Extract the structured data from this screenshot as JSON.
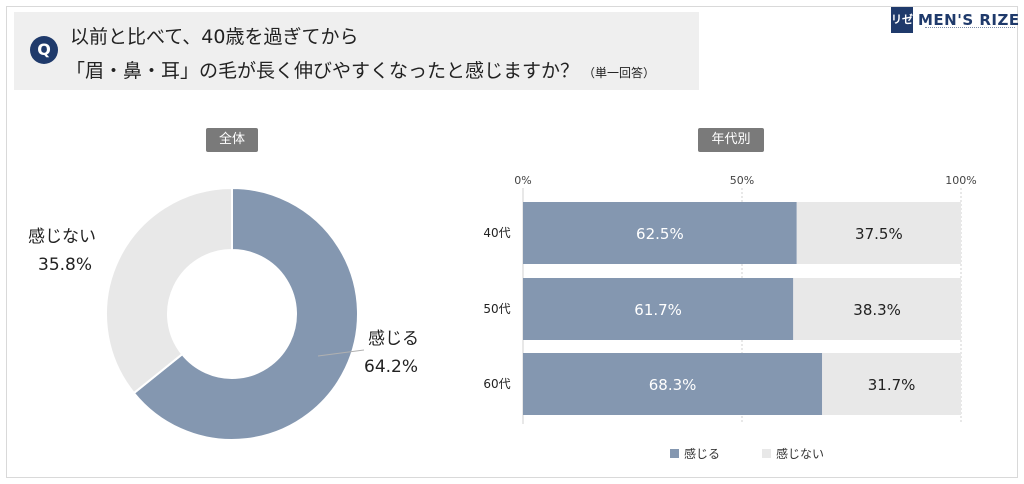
{
  "question": {
    "badge": "Q",
    "line1": "以前と比べて、40歳を過ぎてから",
    "line2": "「眉・鼻・耳」の毛が長く伸びやすくなったと感じますか？",
    "note": "（単一回答）"
  },
  "logo": {
    "mark": "リゼ",
    "text": "MEN'S RIZE"
  },
  "tags": {
    "total": "全体",
    "by_age": "年代別"
  },
  "colors": {
    "feel": "#8497b0",
    "not_feel": "#e8e8e8"
  },
  "chart_data": [
    {
      "type": "pie",
      "title": "全体",
      "donut": true,
      "slices": [
        {
          "label": "感じる",
          "value": 64.2,
          "display": "64.2%"
        },
        {
          "label": "感じない",
          "value": 35.8,
          "display": "35.8%"
        }
      ]
    },
    {
      "type": "bar",
      "orientation": "horizontal",
      "stacked": true,
      "title": "年代別",
      "categories": [
        "40代",
        "50代",
        "60代"
      ],
      "xlim": [
        0,
        100
      ],
      "ticks": [
        "0%",
        "50%",
        "100%"
      ],
      "series": [
        {
          "name": "感じる",
          "values": [
            62.5,
            61.7,
            68.3
          ],
          "labels": [
            "62.5%",
            "61.7%",
            "68.3%"
          ]
        },
        {
          "name": "感じない",
          "values": [
            37.5,
            38.3,
            31.7
          ],
          "labels": [
            "37.5%",
            "38.3%",
            "31.7%"
          ]
        }
      ],
      "legend": "bottom"
    }
  ]
}
